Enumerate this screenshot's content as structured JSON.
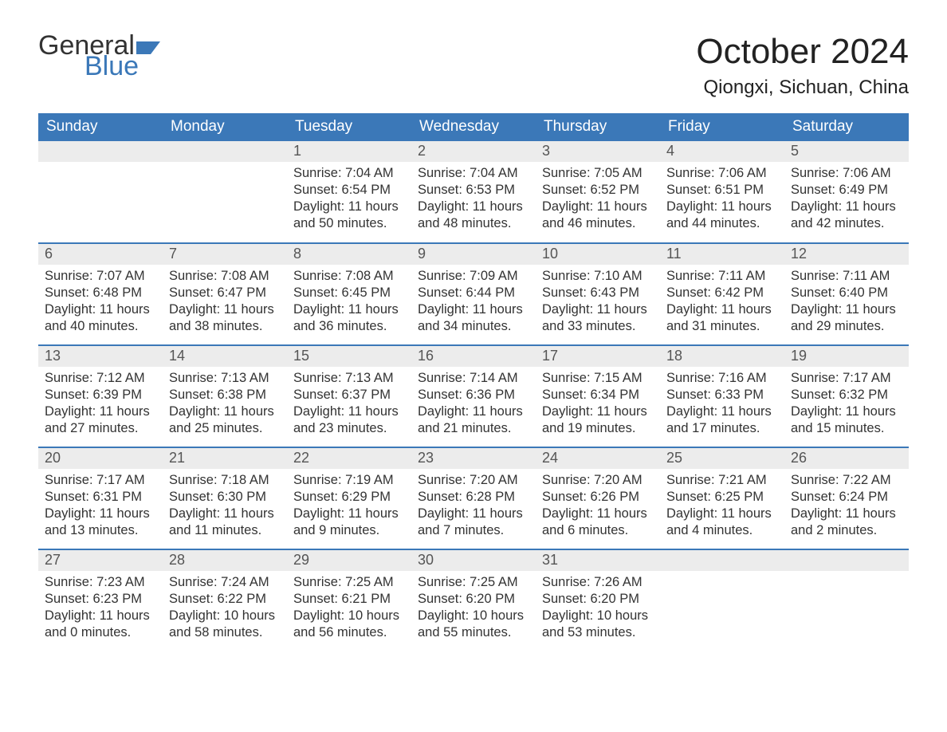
{
  "logo": {
    "text1": "General",
    "text2": "Blue",
    "flag_color": "#3b78b8"
  },
  "title": "October 2024",
  "location": "Qiongxi, Sichuan, China",
  "colors": {
    "header_bg": "#3b78b8",
    "header_text": "#ffffff",
    "daynum_bg": "#ececec",
    "body_text": "#333333",
    "rule": "#3b78b8"
  },
  "typography": {
    "title_fontsize": 44,
    "location_fontsize": 24,
    "weekday_fontsize": 19,
    "daynum_fontsize": 18,
    "body_fontsize": 16.5
  },
  "weekdays": [
    "Sunday",
    "Monday",
    "Tuesday",
    "Wednesday",
    "Thursday",
    "Friday",
    "Saturday"
  ],
  "labels": {
    "sunrise": "Sunrise: ",
    "sunset": "Sunset: ",
    "daylight": "Daylight: "
  },
  "weeks": [
    [
      null,
      null,
      {
        "n": 1,
        "sunrise": "7:04 AM",
        "sunset": "6:54 PM",
        "daylight": "11 hours and 50 minutes."
      },
      {
        "n": 2,
        "sunrise": "7:04 AM",
        "sunset": "6:53 PM",
        "daylight": "11 hours and 48 minutes."
      },
      {
        "n": 3,
        "sunrise": "7:05 AM",
        "sunset": "6:52 PM",
        "daylight": "11 hours and 46 minutes."
      },
      {
        "n": 4,
        "sunrise": "7:06 AM",
        "sunset": "6:51 PM",
        "daylight": "11 hours and 44 minutes."
      },
      {
        "n": 5,
        "sunrise": "7:06 AM",
        "sunset": "6:49 PM",
        "daylight": "11 hours and 42 minutes."
      }
    ],
    [
      {
        "n": 6,
        "sunrise": "7:07 AM",
        "sunset": "6:48 PM",
        "daylight": "11 hours and 40 minutes."
      },
      {
        "n": 7,
        "sunrise": "7:08 AM",
        "sunset": "6:47 PM",
        "daylight": "11 hours and 38 minutes."
      },
      {
        "n": 8,
        "sunrise": "7:08 AM",
        "sunset": "6:45 PM",
        "daylight": "11 hours and 36 minutes."
      },
      {
        "n": 9,
        "sunrise": "7:09 AM",
        "sunset": "6:44 PM",
        "daylight": "11 hours and 34 minutes."
      },
      {
        "n": 10,
        "sunrise": "7:10 AM",
        "sunset": "6:43 PM",
        "daylight": "11 hours and 33 minutes."
      },
      {
        "n": 11,
        "sunrise": "7:11 AM",
        "sunset": "6:42 PM",
        "daylight": "11 hours and 31 minutes."
      },
      {
        "n": 12,
        "sunrise": "7:11 AM",
        "sunset": "6:40 PM",
        "daylight": "11 hours and 29 minutes."
      }
    ],
    [
      {
        "n": 13,
        "sunrise": "7:12 AM",
        "sunset": "6:39 PM",
        "daylight": "11 hours and 27 minutes."
      },
      {
        "n": 14,
        "sunrise": "7:13 AM",
        "sunset": "6:38 PM",
        "daylight": "11 hours and 25 minutes."
      },
      {
        "n": 15,
        "sunrise": "7:13 AM",
        "sunset": "6:37 PM",
        "daylight": "11 hours and 23 minutes."
      },
      {
        "n": 16,
        "sunrise": "7:14 AM",
        "sunset": "6:36 PM",
        "daylight": "11 hours and 21 minutes."
      },
      {
        "n": 17,
        "sunrise": "7:15 AM",
        "sunset": "6:34 PM",
        "daylight": "11 hours and 19 minutes."
      },
      {
        "n": 18,
        "sunrise": "7:16 AM",
        "sunset": "6:33 PM",
        "daylight": "11 hours and 17 minutes."
      },
      {
        "n": 19,
        "sunrise": "7:17 AM",
        "sunset": "6:32 PM",
        "daylight": "11 hours and 15 minutes."
      }
    ],
    [
      {
        "n": 20,
        "sunrise": "7:17 AM",
        "sunset": "6:31 PM",
        "daylight": "11 hours and 13 minutes."
      },
      {
        "n": 21,
        "sunrise": "7:18 AM",
        "sunset": "6:30 PM",
        "daylight": "11 hours and 11 minutes."
      },
      {
        "n": 22,
        "sunrise": "7:19 AM",
        "sunset": "6:29 PM",
        "daylight": "11 hours and 9 minutes."
      },
      {
        "n": 23,
        "sunrise": "7:20 AM",
        "sunset": "6:28 PM",
        "daylight": "11 hours and 7 minutes."
      },
      {
        "n": 24,
        "sunrise": "7:20 AM",
        "sunset": "6:26 PM",
        "daylight": "11 hours and 6 minutes."
      },
      {
        "n": 25,
        "sunrise": "7:21 AM",
        "sunset": "6:25 PM",
        "daylight": "11 hours and 4 minutes."
      },
      {
        "n": 26,
        "sunrise": "7:22 AM",
        "sunset": "6:24 PM",
        "daylight": "11 hours and 2 minutes."
      }
    ],
    [
      {
        "n": 27,
        "sunrise": "7:23 AM",
        "sunset": "6:23 PM",
        "daylight": "11 hours and 0 minutes."
      },
      {
        "n": 28,
        "sunrise": "7:24 AM",
        "sunset": "6:22 PM",
        "daylight": "10 hours and 58 minutes."
      },
      {
        "n": 29,
        "sunrise": "7:25 AM",
        "sunset": "6:21 PM",
        "daylight": "10 hours and 56 minutes."
      },
      {
        "n": 30,
        "sunrise": "7:25 AM",
        "sunset": "6:20 PM",
        "daylight": "10 hours and 55 minutes."
      },
      {
        "n": 31,
        "sunrise": "7:26 AM",
        "sunset": "6:20 PM",
        "daylight": "10 hours and 53 minutes."
      },
      null,
      null
    ]
  ]
}
